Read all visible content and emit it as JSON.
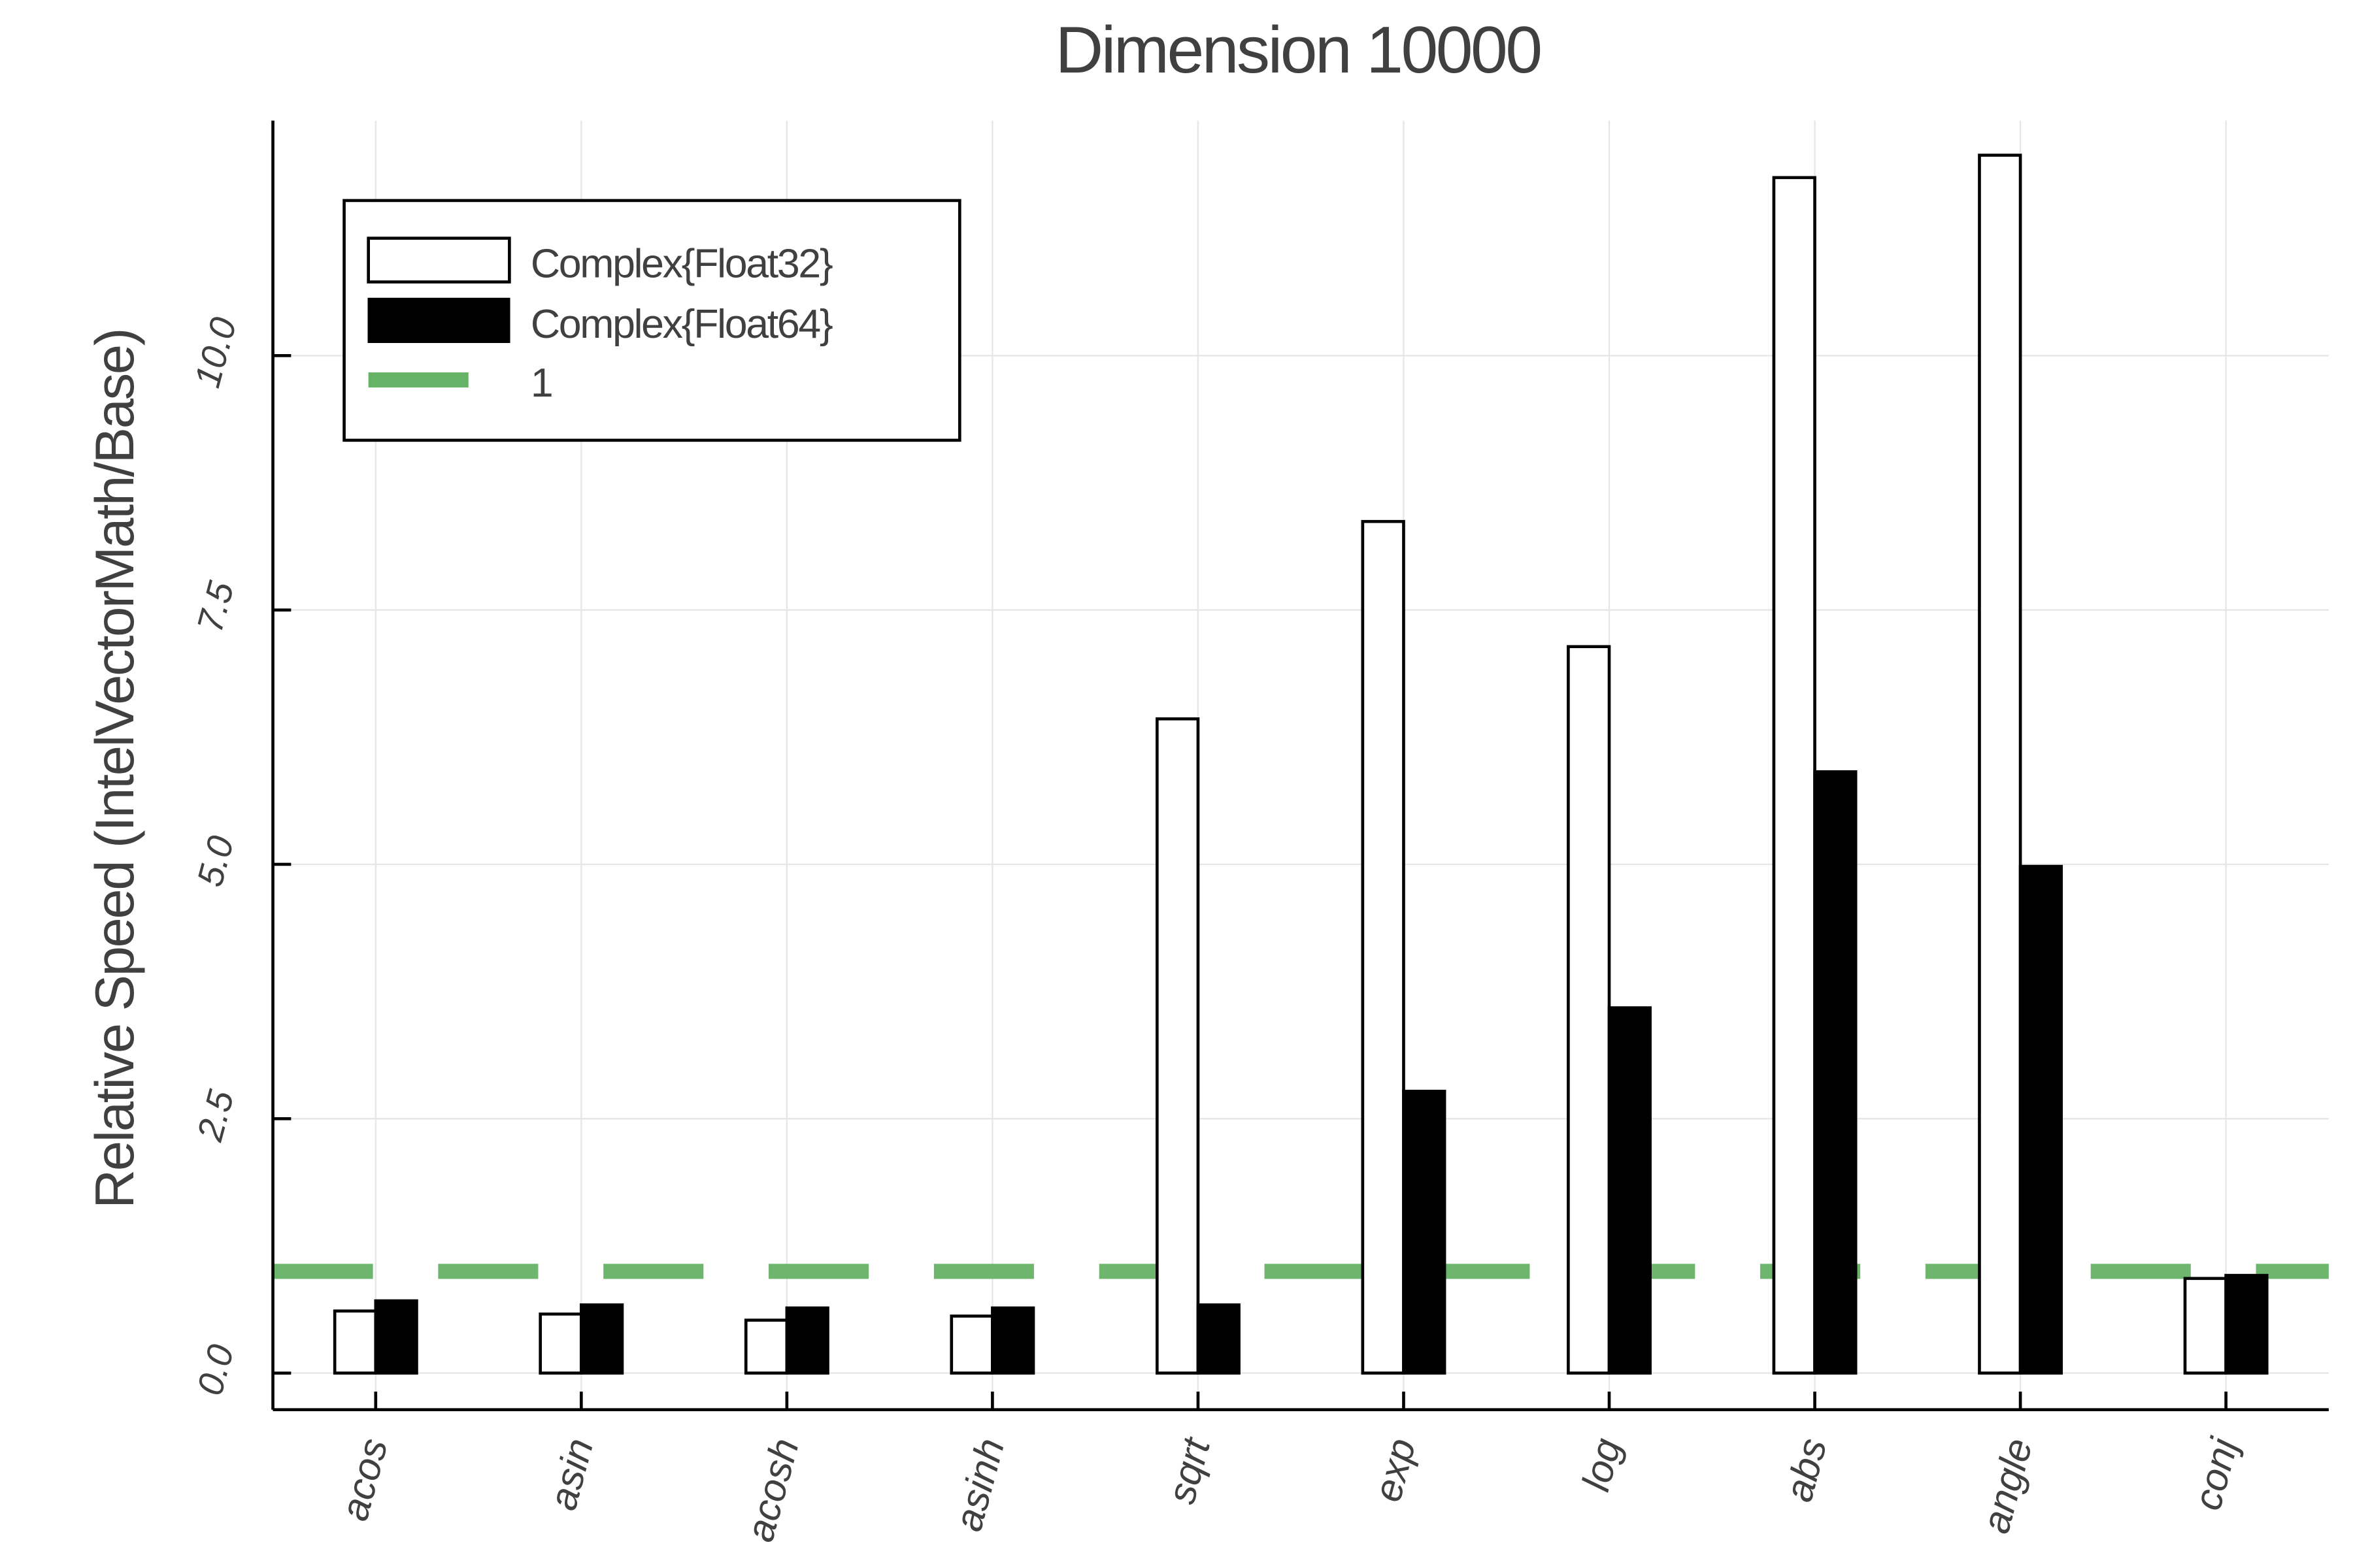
{
  "chart_data": {
    "type": "bar",
    "title": "Dimension 10000",
    "xlabel": "",
    "ylabel": "Relative Speed (IntelVectorMath/Base)",
    "categories": [
      "acos",
      "asin",
      "acosh",
      "asinh",
      "sqrt",
      "exp",
      "log",
      "abs",
      "angle",
      "conj"
    ],
    "series": [
      {
        "name": "Complex{Float32}",
        "fill": "#ffffff",
        "stroke": "#000000",
        "values": [
          0.61,
          0.58,
          0.52,
          0.56,
          6.43,
          8.37,
          7.14,
          11.75,
          11.97,
          0.93
        ]
      },
      {
        "name": "Complex{Float64}",
        "fill": "#000000",
        "stroke": "#000000",
        "values": [
          0.71,
          0.67,
          0.64,
          0.64,
          0.67,
          2.77,
          3.59,
          5.91,
          4.98,
          0.96
        ]
      }
    ],
    "reference_line": {
      "name": "1",
      "value": 1,
      "color": "#66b266",
      "style": "dashed"
    },
    "yticks": [
      "0.0",
      "2.5",
      "5.0",
      "7.5",
      "10.0"
    ],
    "ytick_values": [
      0,
      2.5,
      5,
      7.5,
      10
    ],
    "ylim": [
      -0.36,
      12.31
    ],
    "grid": true,
    "legend_position": "top-left"
  }
}
